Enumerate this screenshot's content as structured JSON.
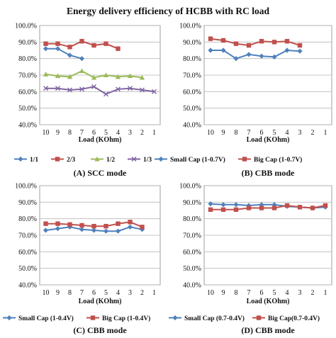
{
  "title": "Energy delivery efficiency of HCBB with RC load",
  "chart_data": [
    {
      "type": "line",
      "caption": "(A) SCC mode",
      "xlabel": "Load (KOhm)",
      "ylabel": "",
      "categories": [
        "10",
        "9",
        "8",
        "7",
        "6",
        "5",
        "4",
        "3",
        "2",
        "1"
      ],
      "ylim": [
        40,
        100
      ],
      "yticks": [
        "40.0%",
        "50.0%",
        "60.0%",
        "70.0%",
        "80.0%",
        "90.0%",
        "100.0%"
      ],
      "grid": true,
      "legend_position": "bottom",
      "series": [
        {
          "name": "1/1",
          "color": "#4f81bd",
          "marker": "diamond",
          "values": [
            86,
            86,
            82,
            80,
            null,
            null,
            null,
            null,
            null,
            null
          ]
        },
        {
          "name": "2/3",
          "color": "#c0504d",
          "marker": "square",
          "values": [
            89,
            89,
            87,
            90.5,
            88,
            89,
            86,
            null,
            null,
            null
          ]
        },
        {
          "name": "1/2",
          "color": "#9bbb59",
          "marker": "triangle",
          "values": [
            70.5,
            69.5,
            69,
            72.5,
            68.5,
            70,
            69,
            69.5,
            68.5,
            null
          ]
        },
        {
          "name": "1/3",
          "color": "#8064a2",
          "marker": "x",
          "values": [
            62,
            62,
            61,
            61.5,
            63,
            58.5,
            61.5,
            62,
            61,
            60
          ]
        }
      ]
    },
    {
      "type": "line",
      "caption": "(B) CBB mode",
      "xlabel": "Load (KOhm)",
      "ylabel": "",
      "categories": [
        "10",
        "9",
        "8",
        "7",
        "6",
        "5",
        "4",
        "3",
        "2",
        "1"
      ],
      "ylim": [
        40,
        100
      ],
      "yticks": [
        "40.0%",
        "50.0%",
        "60.0%",
        "70.0%",
        "80.0%",
        "90.0%",
        "100.0%"
      ],
      "grid": true,
      "legend_position": "bottom",
      "series": [
        {
          "name": "Small Cap (1-0.7V)",
          "color": "#4f81bd",
          "marker": "diamond",
          "values": [
            85,
            85,
            80,
            82.5,
            81.5,
            81,
            85,
            84.5,
            null,
            null
          ]
        },
        {
          "name": "Big Cap (1-0.7V)",
          "color": "#c0504d",
          "marker": "square",
          "values": [
            92,
            91,
            89,
            88,
            90.5,
            90,
            90.5,
            88,
            null,
            null
          ]
        }
      ]
    },
    {
      "type": "line",
      "caption": "(C) CBB mode",
      "xlabel": "Load (KOhm)",
      "ylabel": "",
      "categories": [
        "10",
        "9",
        "8",
        "7",
        "6",
        "5",
        "4",
        "3",
        "2",
        "1"
      ],
      "ylim": [
        40,
        100
      ],
      "yticks": [
        "40.0%",
        "50.0%",
        "60.0%",
        "70.0%",
        "80.0%",
        "90.0%",
        "100.0%"
      ],
      "grid": true,
      "legend_position": "bottom",
      "series": [
        {
          "name": "Small Cap (1-0.4V)",
          "color": "#4f81bd",
          "marker": "diamond",
          "values": [
            73,
            74,
            75,
            73.5,
            73,
            72.5,
            72.5,
            75,
            73.5,
            null
          ]
        },
        {
          "name": "Big Cap (1-0.4V)",
          "color": "#c0504d",
          "marker": "square",
          "values": [
            77,
            77,
            76.5,
            76,
            75.5,
            75.5,
            77,
            78,
            75,
            null
          ]
        }
      ]
    },
    {
      "type": "line",
      "caption": "(D) CBB mode",
      "xlabel": "Load (KOhm)",
      "ylabel": "",
      "categories": [
        "10",
        "9",
        "8",
        "7",
        "6",
        "5",
        "4",
        "3",
        "2",
        "1"
      ],
      "ylim": [
        40,
        100
      ],
      "yticks": [
        "40.0%",
        "50.0%",
        "60.0%",
        "70.0%",
        "80.0%",
        "90.0%",
        "100.0%"
      ],
      "grid": true,
      "legend_position": "bottom",
      "series": [
        {
          "name": "Small Cap (0.7-0.4V)",
          "color": "#4f81bd",
          "marker": "diamond",
          "values": [
            89,
            88.5,
            88.5,
            88,
            88.5,
            88.5,
            87.5,
            87,
            86.5,
            87
          ]
        },
        {
          "name": "Big Cap(0.7-0.4V)",
          "color": "#c0504d",
          "marker": "square",
          "values": [
            85.5,
            85.5,
            85.5,
            86.5,
            86.5,
            86.5,
            88,
            87,
            86.5,
            88
          ]
        }
      ]
    }
  ]
}
